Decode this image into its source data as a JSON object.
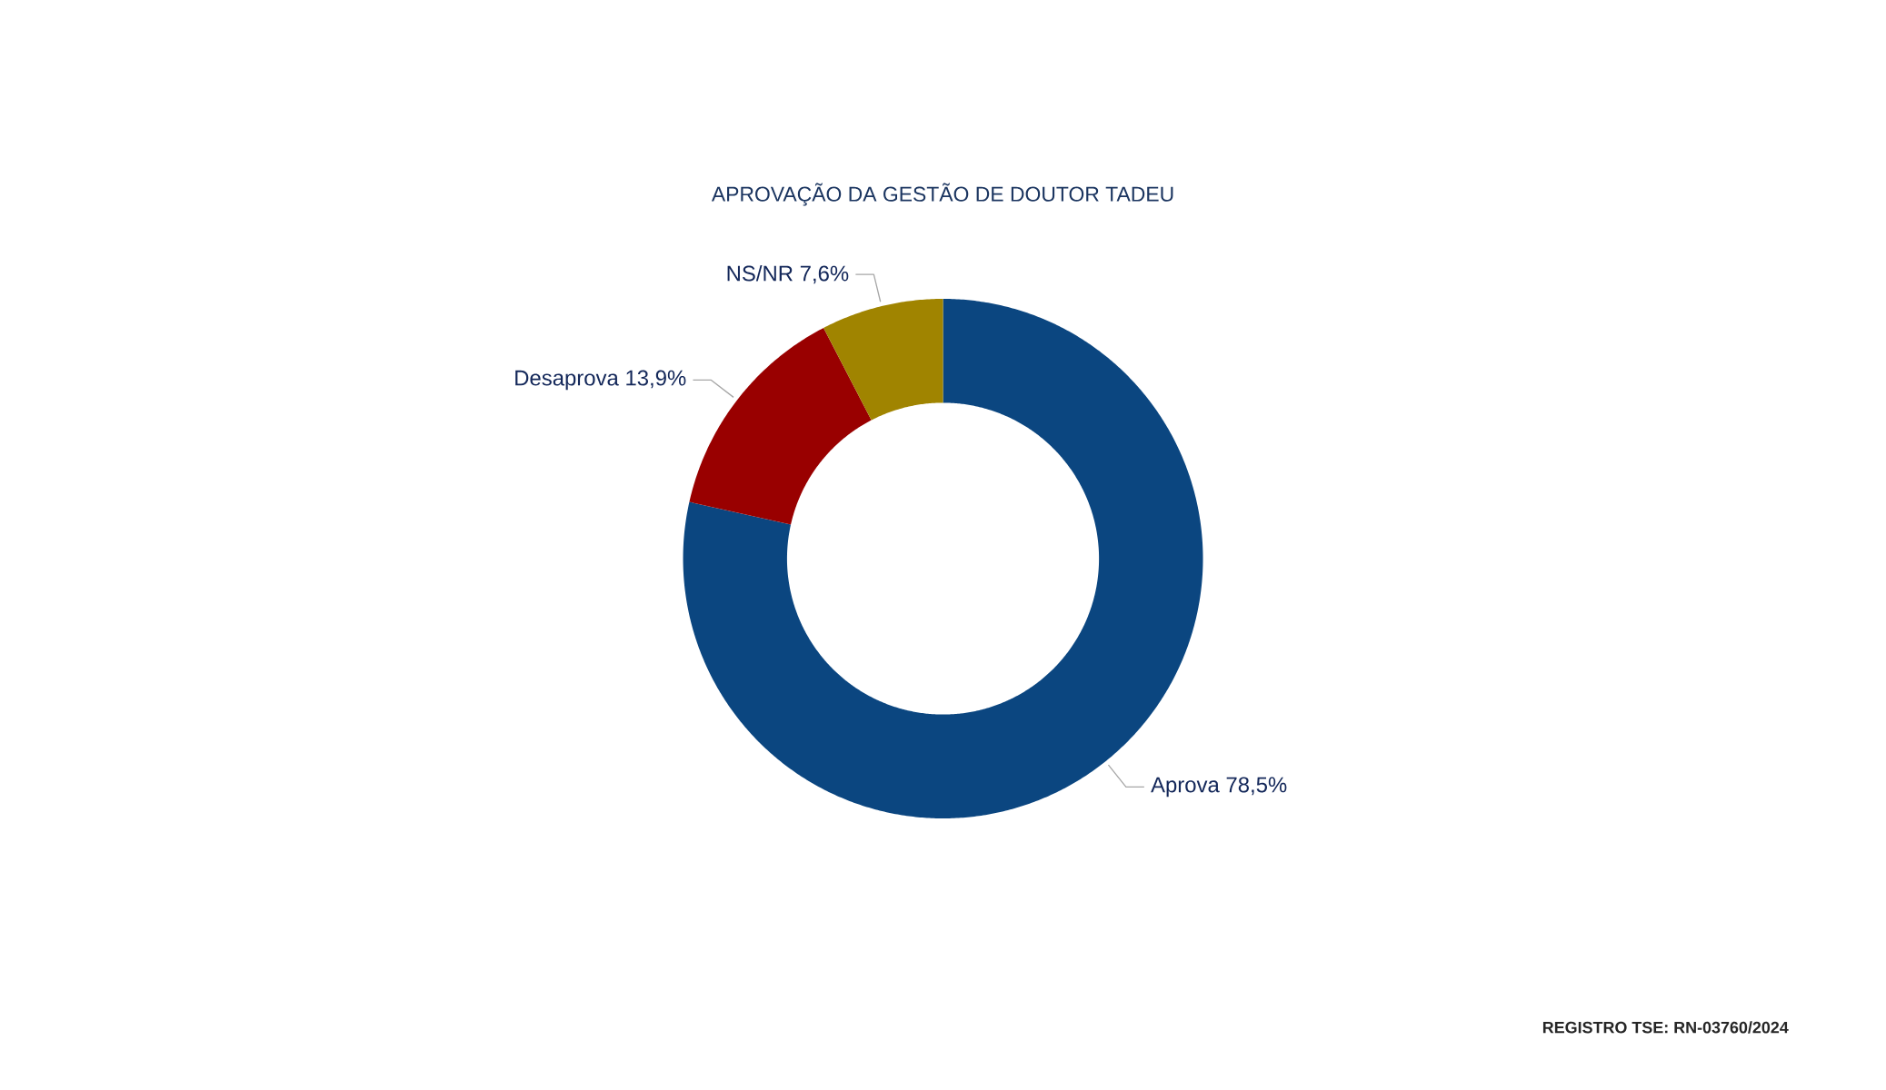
{
  "chart_data": {
    "type": "donut",
    "title": "APROVAÇÃO DA GESTÃO DE DOUTOR TADEU",
    "categories": [
      "Aprova",
      "Desaprova",
      "NS/NR"
    ],
    "values": [
      78.5,
      13.9,
      7.6
    ],
    "colors": [
      "#0b4680",
      "#990000",
      "#a08400"
    ],
    "value_labels": [
      "78,5%",
      "13,9%",
      "7,6%"
    ],
    "annotations": [
      "REGISTRO TSE: RN-03760/2024"
    ]
  }
}
